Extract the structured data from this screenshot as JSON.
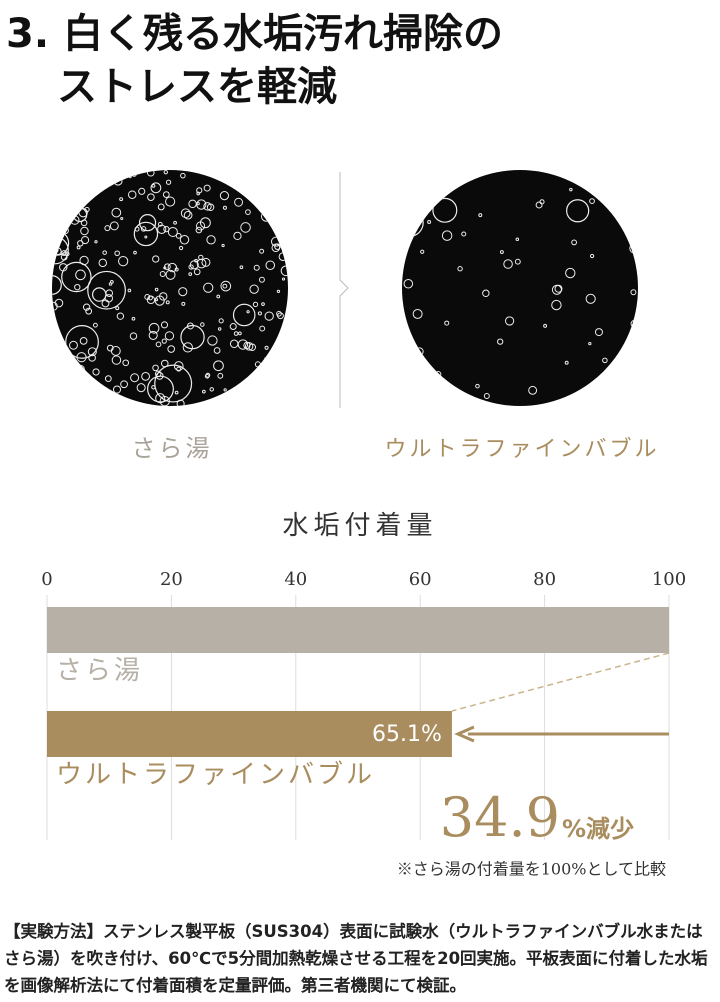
{
  "header": {
    "title_lines": [
      "3. 白く残る水垢汚れ掃除の",
      "ストレスを軽減"
    ]
  },
  "comparison": [
    {
      "caption": "さら湯"
    },
    {
      "caption": "ウルトラファインバブル"
    }
  ],
  "chart_data": {
    "type": "bar",
    "orientation": "horizontal",
    "title": "水垢付着量",
    "categories": [
      "さら湯",
      "ウルトラファインバブル"
    ],
    "series": [
      {
        "name": "水垢付着量",
        "colors": [
          "#b6b0a6",
          "#a98d5f"
        ],
        "values": [
          100,
          65.1
        ],
        "value_labels": [
          null,
          "65.1%"
        ]
      }
    ],
    "xlim": [
      0,
      100
    ],
    "xticks": [
      0,
      20,
      40,
      60,
      80,
      100
    ],
    "grid": true,
    "annotation": {
      "number": "34.9",
      "unit": "%減少"
    },
    "note": "※さら湯の付着量を100%として比較"
  },
  "footer": {
    "text": "【実験方法】ステンレス製平板（SUS304）表面に試験水（ウルトラファインバブル水またはさら湯）を吹き付け、60℃で5分間加熱乾燥させる工程を20回実施。平板表面に付着した水垢を画像解析法にて付着面積を定量評価。第三者機関にて検証。"
  }
}
